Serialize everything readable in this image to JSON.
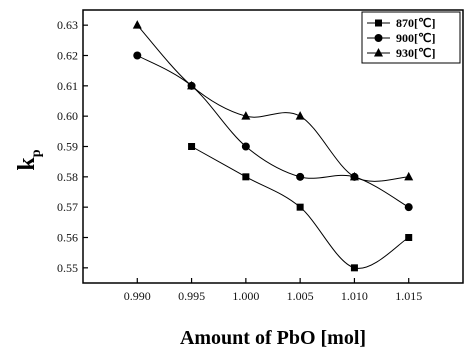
{
  "chart_data": {
    "type": "line",
    "title": "",
    "xlabel": "Amount of PbO [mol]",
    "ylabel": "k",
    "ylabel_subscript": "p",
    "xlim": [
      0.985,
      1.02
    ],
    "ylim": [
      0.545,
      0.635
    ],
    "x_ticks": [
      0.99,
      0.995,
      1.0,
      1.005,
      1.01,
      1.015
    ],
    "x_tick_labels": [
      "0.990",
      "0.995",
      "1.000",
      "1.005",
      "1.010",
      "1.015"
    ],
    "y_ticks": [
      0.55,
      0.56,
      0.57,
      0.58,
      0.59,
      0.6,
      0.61,
      0.62,
      0.63
    ],
    "y_tick_labels": [
      "0.55",
      "0.56",
      "0.57",
      "0.58",
      "0.59",
      "0.60",
      "0.61",
      "0.62",
      "0.63"
    ],
    "grid": false,
    "legend_position": "top-right",
    "series": [
      {
        "name": "870[℃]",
        "marker": "square",
        "x": [
          0.995,
          1.0,
          1.005,
          1.01,
          1.015
        ],
        "y": [
          0.59,
          0.58,
          0.57,
          0.55,
          0.56
        ]
      },
      {
        "name": "900[℃]",
        "marker": "circle",
        "x": [
          0.99,
          0.995,
          1.0,
          1.005,
          1.01,
          1.015
        ],
        "y": [
          0.62,
          0.61,
          0.59,
          0.58,
          0.58,
          0.57
        ]
      },
      {
        "name": "930[℃]",
        "marker": "triangle",
        "x": [
          0.99,
          0.995,
          1.0,
          1.005,
          1.01,
          1.015
        ],
        "y": [
          0.63,
          0.61,
          0.6,
          0.6,
          0.58,
          0.58
        ]
      }
    ],
    "colors": {
      "line": "#000000",
      "marker": "#000000"
    }
  }
}
